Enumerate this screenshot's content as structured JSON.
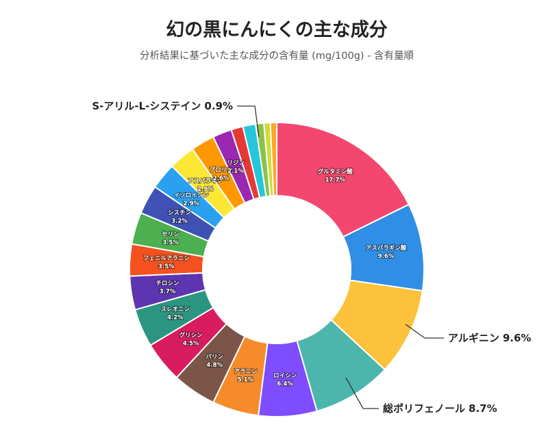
{
  "chart_data": {
    "type": "donut",
    "title": "幻の黒にんにくの主な成分",
    "subtitle": "分析結果に基づいた主な成分の含有量 (mg/100g) - 含有量順",
    "categories": [
      "グルタミン酸",
      "アスパラギン酸",
      "アルギニン",
      "総ポリフェノール",
      "ロイシン",
      "アラニン",
      "バリン",
      "グリシン",
      "スレオニン",
      "チロシン",
      "フェニルアラニン",
      "セリン",
      "シスチン",
      "イソロイシン",
      "アスパラギン",
      "プロリン",
      "リジン",
      null,
      null,
      "S-アリル-L-システイン",
      null,
      null
    ],
    "values": [
      17.7,
      9.6,
      9.6,
      8.7,
      6.4,
      5.1,
      4.8,
      4.5,
      4.2,
      3.7,
      3.5,
      3.5,
      3.2,
      2.9,
      2.9,
      2.6,
      2.1,
      1.3,
      1.4,
      0.9,
      0.7,
      0.7
    ],
    "value_labels": [
      "17.7%",
      "9.6%",
      "9.6%",
      "8.7%",
      "6.4%",
      "5.1%",
      "4.8%",
      "4.5%",
      "4.2%",
      "3.7%",
      "3.5%",
      "3.5%",
      "3.2%",
      "2.9%",
      "2.9%",
      "2.6%",
      "2.1%",
      null,
      null,
      "0.9%",
      null,
      null
    ],
    "colors": [
      "#f3476f",
      "#2f8ee6",
      "#fcc23b",
      "#4cb6ac",
      "#7e4dfd",
      "#f68b2c",
      "#7a5548",
      "#d91c60",
      "#2b9580",
      "#5e35b1",
      "#f4511e",
      "#4caf50",
      "#3f51b5",
      "#2aa1f0",
      "#fde735",
      "#ff9800",
      "#9c27b0",
      "#e53935",
      "#26c6da",
      "#8bc34a",
      "#cddc39",
      "#ffa726"
    ]
  }
}
